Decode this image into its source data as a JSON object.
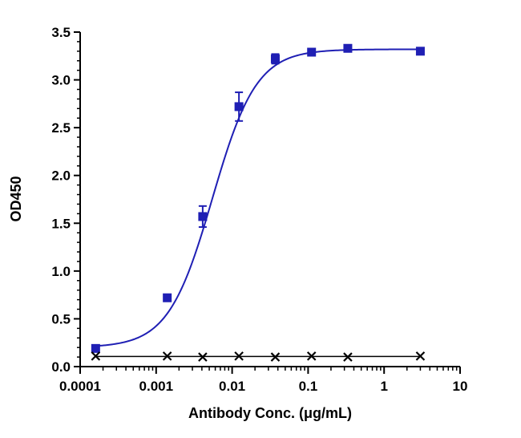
{
  "chart_data": {
    "type": "scatter",
    "title": "",
    "xlabel": "Antibody Conc. (μg/mL)",
    "ylabel": "OD450",
    "x_scale": "log",
    "xlim": [
      0.0001,
      10
    ],
    "ylim": [
      0,
      3.5
    ],
    "x_ticks": [
      0.0001,
      0.001,
      0.01,
      0.1,
      1,
      10
    ],
    "x_tick_labels": [
      "0.0001",
      "0.001",
      "0.01",
      "0.1",
      "1",
      "10"
    ],
    "y_ticks": [
      0,
      0.5,
      1.0,
      1.5,
      2.0,
      2.5,
      3.0,
      3.5
    ],
    "y_tick_labels": [
      "0.0",
      "0.5",
      "1.0",
      "1.5",
      "2.0",
      "2.5",
      "3.0",
      "3.5"
    ],
    "grid": false,
    "legend": "none",
    "series": [
      {
        "marker": "square",
        "color": "#1f1fb4",
        "fit": {
          "model": "4PL",
          "bottom": 0.2,
          "top": 3.32,
          "ec50": 0.0055,
          "hill": 1.5
        },
        "x": [
          0.00016,
          0.0014,
          0.0041,
          0.0123,
          0.037,
          0.111,
          0.333,
          3.0
        ],
        "y": [
          0.19,
          0.72,
          1.57,
          2.72,
          3.22,
          3.29,
          3.33,
          3.3
        ],
        "error": [
          0.02,
          0.03,
          0.11,
          0.15,
          0.05,
          0.02,
          0.02,
          0.02
        ]
      },
      {
        "marker": "x",
        "color": "#000000",
        "line": "flat",
        "x": [
          0.00016,
          0.0014,
          0.0041,
          0.0123,
          0.037,
          0.111,
          0.333,
          3.0
        ],
        "y": [
          0.11,
          0.11,
          0.1,
          0.11,
          0.1,
          0.11,
          0.1,
          0.11
        ]
      }
    ]
  }
}
